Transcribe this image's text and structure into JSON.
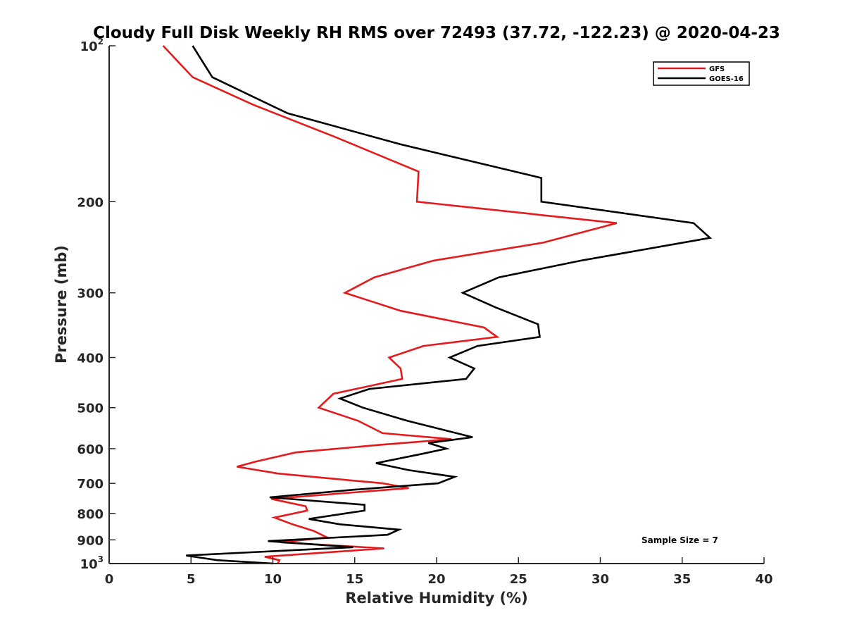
{
  "chart_data": {
    "type": "line",
    "title": "Cloudy Full Disk Weekly RH RMS over 72493 (37.72, -122.23) @ 2020-04-23",
    "xlabel": "Relative Humidity (%)",
    "ylabel": "Pressure (mb)",
    "xlim": [
      0,
      40
    ],
    "ylim": [
      100,
      1000
    ],
    "y_scale": "log",
    "y_reversed": true,
    "grid": false,
    "legend_position": "top-right",
    "x_ticks": [
      0,
      5,
      10,
      15,
      20,
      25,
      30,
      35,
      40
    ],
    "x_tick_labels": [
      "0",
      "5",
      "10",
      "15",
      "20",
      "25",
      "30",
      "35",
      "40"
    ],
    "y_ticks": [
      100,
      200,
      300,
      400,
      500,
      600,
      700,
      800,
      900,
      1000
    ],
    "y_tick_labels": [
      {
        "base": "10",
        "exp": "2"
      },
      {
        "base": "200",
        "exp": ""
      },
      {
        "base": "300",
        "exp": ""
      },
      {
        "base": "400",
        "exp": ""
      },
      {
        "base": "500",
        "exp": ""
      },
      {
        "base": "600",
        "exp": ""
      },
      {
        "base": "700",
        "exp": ""
      },
      {
        "base": "800",
        "exp": ""
      },
      {
        "base": "900",
        "exp": ""
      },
      {
        "base": "10",
        "exp": "3"
      }
    ],
    "annotation": "Sample Size = 7",
    "series": [
      {
        "name": "GFS",
        "color": "#e41a1c",
        "points": [
          [
            3.3,
            100
          ],
          [
            5.1,
            115
          ],
          [
            8.8,
            130
          ],
          [
            13.8,
            150
          ],
          [
            18.9,
            175
          ],
          [
            18.8,
            200
          ],
          [
            31.0,
            220
          ],
          [
            26.5,
            240
          ],
          [
            19.8,
            260
          ],
          [
            16.2,
            280
          ],
          [
            14.4,
            300
          ],
          [
            17.8,
            325
          ],
          [
            22.9,
            350
          ],
          [
            23.7,
            365
          ],
          [
            19.2,
            380
          ],
          [
            17.1,
            400
          ],
          [
            17.8,
            420
          ],
          [
            17.9,
            440
          ],
          [
            13.7,
            470
          ],
          [
            12.8,
            500
          ],
          [
            15.2,
            530
          ],
          [
            16.7,
            560
          ],
          [
            20.9,
            575
          ],
          [
            16.5,
            590
          ],
          [
            11.4,
            610
          ],
          [
            9.0,
            635
          ],
          [
            7.8,
            650
          ],
          [
            10.3,
            670
          ],
          [
            16.7,
            700
          ],
          [
            18.3,
            715
          ],
          [
            9.9,
            750
          ],
          [
            12.0,
            775
          ],
          [
            12.1,
            790
          ],
          [
            10.1,
            815
          ],
          [
            11.2,
            840
          ],
          [
            12.5,
            865
          ],
          [
            13.3,
            890
          ],
          [
            10.5,
            910
          ],
          [
            16.8,
            935
          ],
          [
            9.5,
            970
          ],
          [
            10.4,
            985
          ],
          [
            10.3,
            1000
          ]
        ]
      },
      {
        "name": "GOES-16",
        "color": "#000000",
        "points": [
          [
            5.1,
            100
          ],
          [
            6.3,
            115
          ],
          [
            10.9,
            135
          ],
          [
            17.8,
            155
          ],
          [
            26.4,
            180
          ],
          [
            26.4,
            200
          ],
          [
            35.7,
            220
          ],
          [
            36.7,
            235
          ],
          [
            28.8,
            260
          ],
          [
            23.8,
            280
          ],
          [
            21.6,
            300
          ],
          [
            23.6,
            320
          ],
          [
            26.2,
            345
          ],
          [
            26.3,
            365
          ],
          [
            22.5,
            380
          ],
          [
            20.8,
            400
          ],
          [
            22.3,
            420
          ],
          [
            21.8,
            440
          ],
          [
            15.9,
            460
          ],
          [
            14.1,
            480
          ],
          [
            15.5,
            500
          ],
          [
            18.2,
            530
          ],
          [
            22.2,
            570
          ],
          [
            19.5,
            585
          ],
          [
            20.6,
            600
          ],
          [
            19.0,
            615
          ],
          [
            16.3,
            640
          ],
          [
            18.3,
            660
          ],
          [
            21.1,
            680
          ],
          [
            20.1,
            700
          ],
          [
            15.0,
            720
          ],
          [
            9.8,
            745
          ],
          [
            15.6,
            770
          ],
          [
            15.6,
            790
          ],
          [
            12.2,
            820
          ],
          [
            14.1,
            840
          ],
          [
            17.7,
            860
          ],
          [
            17.0,
            880
          ],
          [
            9.7,
            905
          ],
          [
            14.9,
            930
          ],
          [
            4.7,
            965
          ],
          [
            6.6,
            985
          ],
          [
            10.0,
            1000
          ]
        ]
      }
    ]
  }
}
